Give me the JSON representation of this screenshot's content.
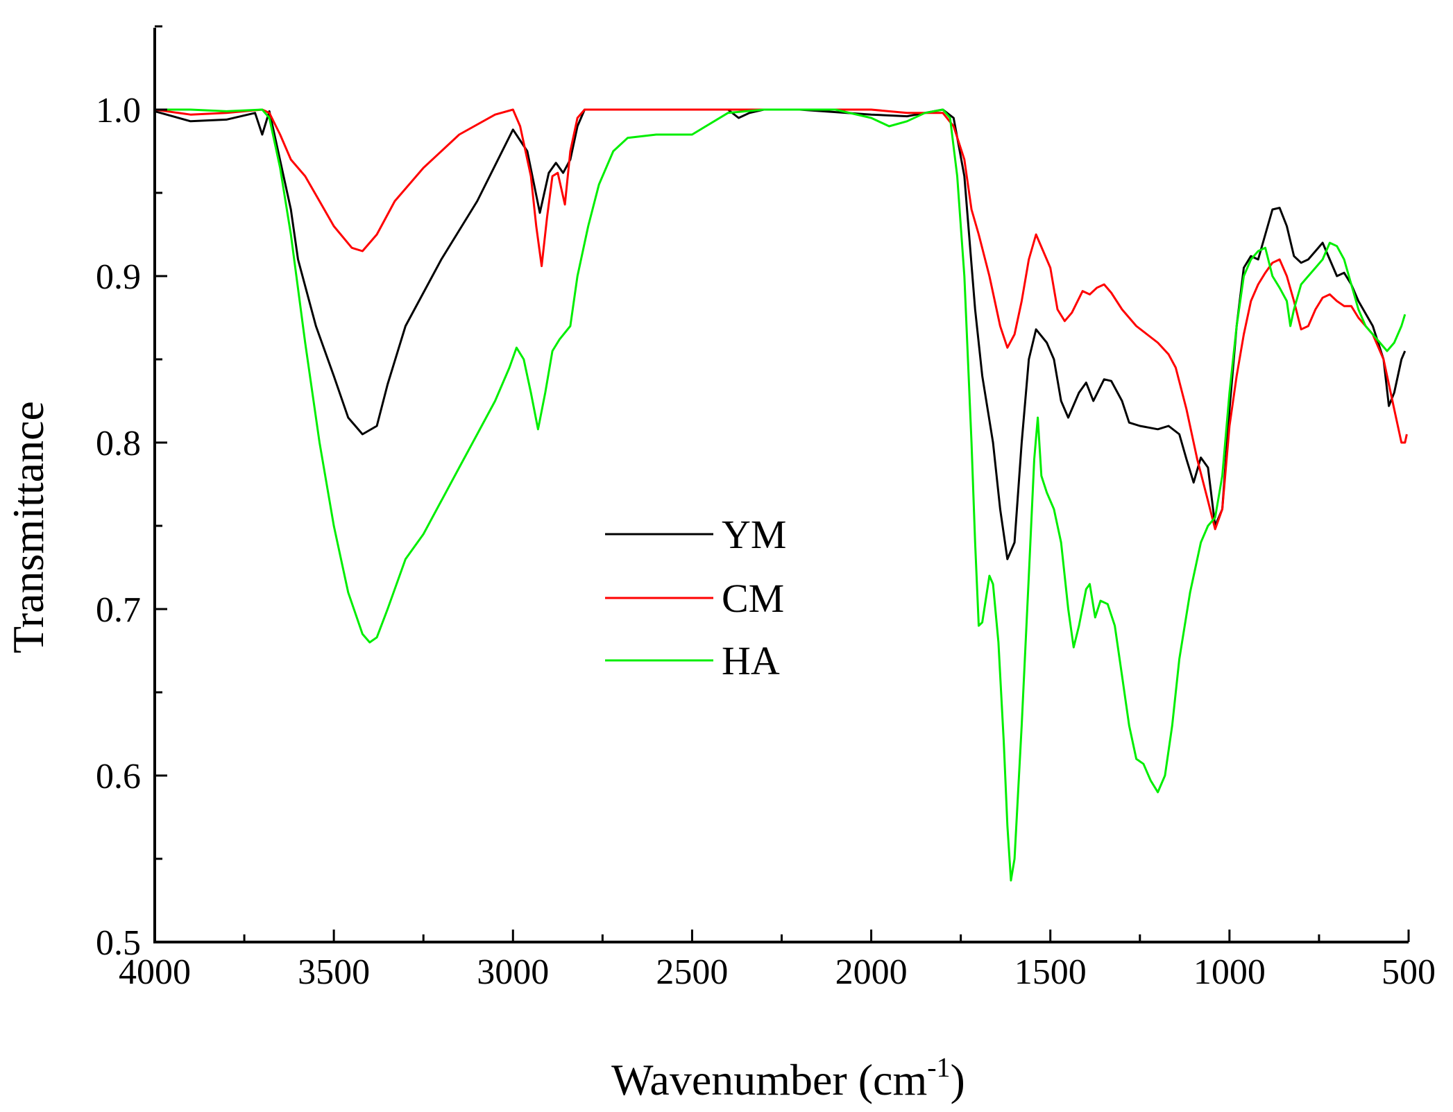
{
  "chart_data": {
    "type": "line",
    "xlabel": "Wavenumber (cm",
    "xlabel_superscript": "-1",
    "xlabel_suffix": ")",
    "ylabel": "Transmittance",
    "xlim": [
      4000,
      500
    ],
    "ylim": [
      0.5,
      1.05
    ],
    "x_reversed": true,
    "xticks": [
      4000,
      3500,
      3000,
      2500,
      2000,
      1500,
      1000,
      500
    ],
    "xtick_labels": [
      "4000",
      "3500",
      "3000",
      "2500",
      "2000",
      "1500",
      "1000",
      "500"
    ],
    "yticks": [
      0.5,
      0.6,
      0.7,
      0.8,
      0.9,
      1.0
    ],
    "ytick_labels": [
      "0.5",
      "0.6",
      "0.7",
      "0.8",
      "0.9",
      "1.0"
    ],
    "grid": false,
    "legend_position": "center",
    "series": [
      {
        "name": "YM",
        "color": "#000000",
        "points": [
          [
            4000,
            0.999
          ],
          [
            3900,
            0.993
          ],
          [
            3800,
            0.994
          ],
          [
            3720,
            0.998
          ],
          [
            3700,
            0.985
          ],
          [
            3680,
            0.999
          ],
          [
            3620,
            0.94
          ],
          [
            3600,
            0.91
          ],
          [
            3550,
            0.87
          ],
          [
            3500,
            0.84
          ],
          [
            3460,
            0.815
          ],
          [
            3420,
            0.805
          ],
          [
            3380,
            0.81
          ],
          [
            3350,
            0.835
          ],
          [
            3300,
            0.87
          ],
          [
            3200,
            0.91
          ],
          [
            3100,
            0.945
          ],
          [
            3000,
            0.988
          ],
          [
            2960,
            0.975
          ],
          [
            2925,
            0.938
          ],
          [
            2900,
            0.962
          ],
          [
            2880,
            0.968
          ],
          [
            2860,
            0.962
          ],
          [
            2840,
            0.97
          ],
          [
            2820,
            0.99
          ],
          [
            2800,
            1.0
          ],
          [
            2400,
            1.0
          ],
          [
            2370,
            0.995
          ],
          [
            2340,
            0.998
          ],
          [
            2300,
            1.0
          ],
          [
            2200,
            1.0
          ],
          [
            2000,
            0.997
          ],
          [
            1900,
            0.996
          ],
          [
            1800,
            1.0
          ],
          [
            1770,
            0.995
          ],
          [
            1740,
            0.96
          ],
          [
            1710,
            0.88
          ],
          [
            1690,
            0.84
          ],
          [
            1660,
            0.8
          ],
          [
            1640,
            0.76
          ],
          [
            1620,
            0.73
          ],
          [
            1600,
            0.74
          ],
          [
            1580,
            0.8
          ],
          [
            1560,
            0.85
          ],
          [
            1540,
            0.868
          ],
          [
            1510,
            0.86
          ],
          [
            1490,
            0.85
          ],
          [
            1470,
            0.825
          ],
          [
            1450,
            0.815
          ],
          [
            1420,
            0.83
          ],
          [
            1400,
            0.836
          ],
          [
            1380,
            0.825
          ],
          [
            1350,
            0.838
          ],
          [
            1330,
            0.837
          ],
          [
            1300,
            0.825
          ],
          [
            1280,
            0.812
          ],
          [
            1250,
            0.81
          ],
          [
            1200,
            0.808
          ],
          [
            1170,
            0.81
          ],
          [
            1140,
            0.805
          ],
          [
            1120,
            0.79
          ],
          [
            1100,
            0.776
          ],
          [
            1080,
            0.791
          ],
          [
            1060,
            0.785
          ],
          [
            1040,
            0.75
          ],
          [
            1020,
            0.76
          ],
          [
            1000,
            0.82
          ],
          [
            980,
            0.87
          ],
          [
            960,
            0.905
          ],
          [
            940,
            0.912
          ],
          [
            920,
            0.91
          ],
          [
            900,
            0.925
          ],
          [
            880,
            0.94
          ],
          [
            860,
            0.941
          ],
          [
            840,
            0.93
          ],
          [
            820,
            0.912
          ],
          [
            800,
            0.908
          ],
          [
            780,
            0.91
          ],
          [
            760,
            0.915
          ],
          [
            740,
            0.92
          ],
          [
            720,
            0.91
          ],
          [
            700,
            0.9
          ],
          [
            680,
            0.902
          ],
          [
            660,
            0.895
          ],
          [
            640,
            0.885
          ],
          [
            600,
            0.87
          ],
          [
            570,
            0.85
          ],
          [
            555,
            0.822
          ],
          [
            540,
            0.83
          ],
          [
            520,
            0.85
          ],
          [
            510,
            0.855
          ]
        ]
      },
      {
        "name": "CM",
        "color": "#ff0000",
        "points": [
          [
            4000,
            1.0
          ],
          [
            3900,
            0.997
          ],
          [
            3800,
            0.998
          ],
          [
            3700,
            1.0
          ],
          [
            3680,
            0.998
          ],
          [
            3650,
            0.985
          ],
          [
            3620,
            0.97
          ],
          [
            3580,
            0.96
          ],
          [
            3540,
            0.945
          ],
          [
            3500,
            0.93
          ],
          [
            3450,
            0.917
          ],
          [
            3420,
            0.915
          ],
          [
            3380,
            0.925
          ],
          [
            3330,
            0.945
          ],
          [
            3250,
            0.965
          ],
          [
            3150,
            0.985
          ],
          [
            3050,
            0.997
          ],
          [
            3000,
            1.0
          ],
          [
            2980,
            0.99
          ],
          [
            2950,
            0.96
          ],
          [
            2935,
            0.93
          ],
          [
            2920,
            0.906
          ],
          [
            2905,
            0.935
          ],
          [
            2890,
            0.96
          ],
          [
            2875,
            0.962
          ],
          [
            2855,
            0.943
          ],
          [
            2840,
            0.975
          ],
          [
            2820,
            0.995
          ],
          [
            2800,
            1.0
          ],
          [
            2000,
            1.0
          ],
          [
            1900,
            0.998
          ],
          [
            1800,
            0.998
          ],
          [
            1770,
            0.99
          ],
          [
            1740,
            0.97
          ],
          [
            1720,
            0.94
          ],
          [
            1700,
            0.925
          ],
          [
            1670,
            0.9
          ],
          [
            1640,
            0.87
          ],
          [
            1620,
            0.857
          ],
          [
            1600,
            0.865
          ],
          [
            1580,
            0.885
          ],
          [
            1560,
            0.91
          ],
          [
            1540,
            0.925
          ],
          [
            1520,
            0.915
          ],
          [
            1500,
            0.905
          ],
          [
            1480,
            0.88
          ],
          [
            1460,
            0.873
          ],
          [
            1440,
            0.878
          ],
          [
            1410,
            0.891
          ],
          [
            1390,
            0.889
          ],
          [
            1370,
            0.893
          ],
          [
            1350,
            0.895
          ],
          [
            1330,
            0.89
          ],
          [
            1300,
            0.88
          ],
          [
            1260,
            0.87
          ],
          [
            1230,
            0.865
          ],
          [
            1200,
            0.86
          ],
          [
            1170,
            0.853
          ],
          [
            1150,
            0.845
          ],
          [
            1120,
            0.82
          ],
          [
            1090,
            0.79
          ],
          [
            1060,
            0.765
          ],
          [
            1040,
            0.748
          ],
          [
            1020,
            0.76
          ],
          [
            1000,
            0.81
          ],
          [
            980,
            0.84
          ],
          [
            960,
            0.865
          ],
          [
            940,
            0.885
          ],
          [
            920,
            0.895
          ],
          [
            900,
            0.902
          ],
          [
            880,
            0.908
          ],
          [
            860,
            0.91
          ],
          [
            840,
            0.9
          ],
          [
            820,
            0.885
          ],
          [
            800,
            0.868
          ],
          [
            780,
            0.87
          ],
          [
            760,
            0.88
          ],
          [
            740,
            0.887
          ],
          [
            720,
            0.889
          ],
          [
            700,
            0.885
          ],
          [
            680,
            0.882
          ],
          [
            660,
            0.882
          ],
          [
            640,
            0.875
          ],
          [
            600,
            0.865
          ],
          [
            570,
            0.85
          ],
          [
            540,
            0.82
          ],
          [
            520,
            0.8
          ],
          [
            510,
            0.8
          ],
          [
            505,
            0.805
          ]
        ]
      },
      {
        "name": "HA",
        "color": "#00ee00",
        "points": [
          [
            4000,
            1.0
          ],
          [
            3900,
            1.0
          ],
          [
            3800,
            0.999
          ],
          [
            3700,
            1.0
          ],
          [
            3680,
            0.995
          ],
          [
            3650,
            0.965
          ],
          [
            3620,
            0.925
          ],
          [
            3580,
            0.86
          ],
          [
            3540,
            0.8
          ],
          [
            3500,
            0.75
          ],
          [
            3460,
            0.71
          ],
          [
            3420,
            0.685
          ],
          [
            3400,
            0.68
          ],
          [
            3380,
            0.683
          ],
          [
            3350,
            0.7
          ],
          [
            3300,
            0.73
          ],
          [
            3250,
            0.745
          ],
          [
            3200,
            0.765
          ],
          [
            3150,
            0.785
          ],
          [
            3100,
            0.805
          ],
          [
            3050,
            0.825
          ],
          [
            3010,
            0.845
          ],
          [
            2990,
            0.857
          ],
          [
            2970,
            0.85
          ],
          [
            2950,
            0.83
          ],
          [
            2930,
            0.808
          ],
          [
            2910,
            0.83
          ],
          [
            2890,
            0.855
          ],
          [
            2870,
            0.862
          ],
          [
            2840,
            0.87
          ],
          [
            2820,
            0.9
          ],
          [
            2790,
            0.93
          ],
          [
            2760,
            0.955
          ],
          [
            2720,
            0.975
          ],
          [
            2680,
            0.983
          ],
          [
            2600,
            0.985
          ],
          [
            2500,
            0.985
          ],
          [
            2400,
            0.998
          ],
          [
            2300,
            1.0
          ],
          [
            2200,
            1.0
          ],
          [
            2100,
            1.0
          ],
          [
            2000,
            0.995
          ],
          [
            1950,
            0.99
          ],
          [
            1900,
            0.993
          ],
          [
            1850,
            0.998
          ],
          [
            1800,
            1.0
          ],
          [
            1780,
            0.995
          ],
          [
            1760,
            0.96
          ],
          [
            1740,
            0.9
          ],
          [
            1720,
            0.8
          ],
          [
            1710,
            0.74
          ],
          [
            1700,
            0.69
          ],
          [
            1690,
            0.692
          ],
          [
            1670,
            0.72
          ],
          [
            1660,
            0.715
          ],
          [
            1645,
            0.68
          ],
          [
            1630,
            0.62
          ],
          [
            1620,
            0.57
          ],
          [
            1610,
            0.537
          ],
          [
            1600,
            0.55
          ],
          [
            1580,
            0.63
          ],
          [
            1560,
            0.72
          ],
          [
            1545,
            0.79
          ],
          [
            1535,
            0.815
          ],
          [
            1525,
            0.78
          ],
          [
            1510,
            0.77
          ],
          [
            1490,
            0.76
          ],
          [
            1470,
            0.74
          ],
          [
            1450,
            0.7
          ],
          [
            1435,
            0.677
          ],
          [
            1420,
            0.69
          ],
          [
            1400,
            0.712
          ],
          [
            1390,
            0.715
          ],
          [
            1375,
            0.695
          ],
          [
            1360,
            0.705
          ],
          [
            1340,
            0.703
          ],
          [
            1320,
            0.69
          ],
          [
            1300,
            0.66
          ],
          [
            1280,
            0.63
          ],
          [
            1260,
            0.61
          ],
          [
            1240,
            0.607
          ],
          [
            1220,
            0.597
          ],
          [
            1200,
            0.59
          ],
          [
            1180,
            0.6
          ],
          [
            1160,
            0.63
          ],
          [
            1140,
            0.67
          ],
          [
            1110,
            0.71
          ],
          [
            1080,
            0.74
          ],
          [
            1060,
            0.75
          ],
          [
            1040,
            0.755
          ],
          [
            1020,
            0.78
          ],
          [
            1000,
            0.83
          ],
          [
            980,
            0.87
          ],
          [
            960,
            0.9
          ],
          [
            940,
            0.91
          ],
          [
            920,
            0.915
          ],
          [
            900,
            0.917
          ],
          [
            880,
            0.9
          ],
          [
            860,
            0.893
          ],
          [
            840,
            0.885
          ],
          [
            830,
            0.87
          ],
          [
            820,
            0.88
          ],
          [
            800,
            0.895
          ],
          [
            780,
            0.9
          ],
          [
            760,
            0.905
          ],
          [
            740,
            0.91
          ],
          [
            720,
            0.92
          ],
          [
            700,
            0.918
          ],
          [
            680,
            0.91
          ],
          [
            660,
            0.895
          ],
          [
            640,
            0.88
          ],
          [
            620,
            0.87
          ],
          [
            600,
            0.865
          ],
          [
            580,
            0.86
          ],
          [
            560,
            0.855
          ],
          [
            540,
            0.86
          ],
          [
            520,
            0.87
          ],
          [
            510,
            0.877
          ]
        ]
      }
    ]
  }
}
